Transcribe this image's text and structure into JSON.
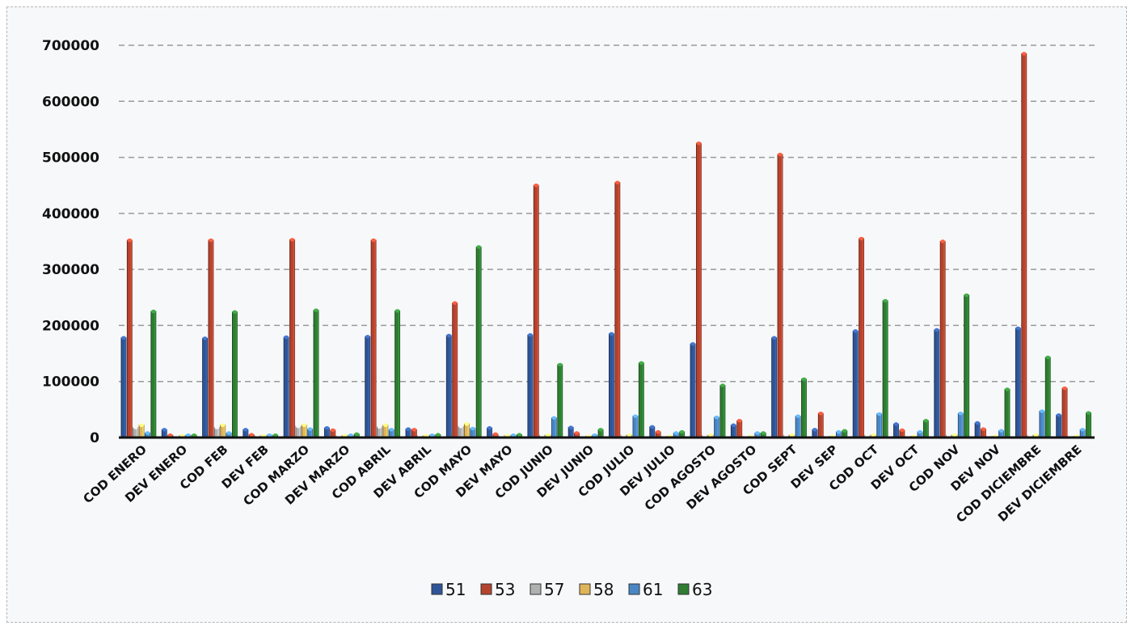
{
  "chart_data": {
    "type": "bar",
    "title": "",
    "xlabel": "",
    "ylabel": "",
    "ylim": [
      0,
      700000
    ],
    "yticks": [
      "0",
      "100000",
      "200000",
      "300000",
      "400000",
      "500000",
      "600000",
      "700000"
    ],
    "grid": true,
    "legend_position": "bottom",
    "categories": [
      "COD ENERO",
      "DEV ENERO",
      "COD FEB",
      "DEV FEB",
      "COD MARZO",
      "DEV MARZO",
      "COD ABRIL",
      "DEV ABRIL",
      "COD MAYO",
      "DEV MAYO",
      "COD JUNIO",
      "DEV JUNIO",
      "COD JULIO",
      "DEV JULIO",
      "COD AGOSTO",
      "DEV AGOSTO",
      "COD SEPT",
      "DEV SEP",
      "COD OCT",
      "DEV OCT",
      "COD NOV",
      "DEV NOV",
      "COD DICIEMBRE",
      "DEV DICIEMBRE"
    ],
    "series": [
      {
        "name": "51",
        "color": "#2f5597",
        "values": [
          178000,
          14000,
          177000,
          14000,
          179000,
          17000,
          180000,
          15000,
          182000,
          17000,
          183000,
          18000,
          185000,
          19000,
          167000,
          22000,
          178000,
          14000,
          190000,
          24000,
          192000,
          26000,
          195000,
          40000
        ]
      },
      {
        "name": "53",
        "color": "#b5432e",
        "values": [
          352000,
          4000,
          352000,
          5000,
          353000,
          13000,
          352000,
          14000,
          240000,
          6000,
          450000,
          8000,
          455000,
          10000,
          525000,
          30000,
          505000,
          43000,
          355000,
          13000,
          350000,
          15000,
          685000,
          88000
        ]
      },
      {
        "name": "57",
        "color": "#b0b0b0",
        "values": [
          18000,
          3000,
          18000,
          3000,
          20000,
          3000,
          19000,
          3000,
          20000,
          3000,
          4000,
          2000,
          4000,
          2000,
          4000,
          2000,
          4000,
          2000,
          4000,
          2000,
          4000,
          2000,
          4000,
          2000
        ]
      },
      {
        "name": "58",
        "color": "#e0b55a",
        "values": [
          22000,
          3000,
          22000,
          3000,
          22000,
          3000,
          22000,
          3000,
          24000,
          3000,
          4000,
          2000,
          4000,
          2000,
          4000,
          2000,
          4000,
          2000,
          4000,
          2000,
          4000,
          2000,
          4000,
          2000
        ]
      },
      {
        "name": "61",
        "color": "#4a86c5",
        "values": [
          8000,
          4000,
          8000,
          4000,
          15000,
          4000,
          14000,
          4000,
          16000,
          4000,
          35000,
          4000,
          38000,
          8000,
          36000,
          8000,
          38000,
          10000,
          42000,
          10000,
          43000,
          12000,
          47000,
          14000
        ]
      },
      {
        "name": "63",
        "color": "#2e7d32",
        "values": [
          225000,
          4000,
          224000,
          4000,
          227000,
          6000,
          226000,
          5000,
          340000,
          5000,
          130000,
          14000,
          133000,
          10000,
          93000,
          8000,
          104000,
          12000,
          244000,
          30000,
          254000,
          86000,
          143000,
          44000
        ]
      }
    ]
  }
}
